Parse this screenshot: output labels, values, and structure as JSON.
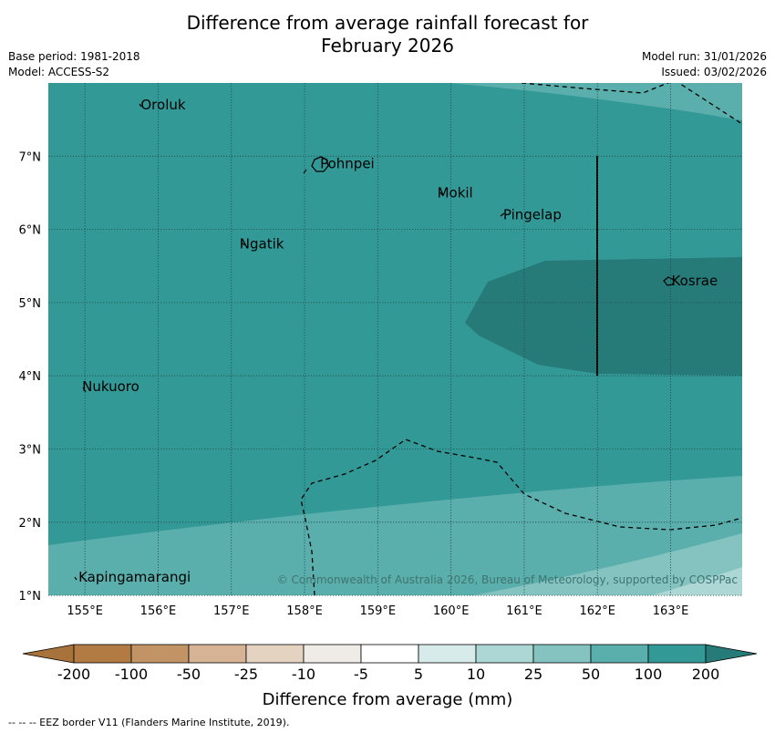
{
  "title": {
    "line1": "Difference from average rainfall forecast for",
    "line2": "February 2026"
  },
  "meta": {
    "base_period": "Base period: 1981-2018",
    "model": "Model: ACCESS-S2",
    "model_run": "Model run: 31/01/2026",
    "issued": "Issued: 03/02/2026"
  },
  "map": {
    "lat_labels": [
      "7°N",
      "6°N",
      "5°N",
      "4°N",
      "3°N",
      "2°N",
      "1°N"
    ],
    "lon_labels": [
      "155°E",
      "156°E",
      "157°E",
      "158°E",
      "159°E",
      "160°E",
      "161°E",
      "162°E",
      "163°E"
    ],
    "places": [
      {
        "name": "Oroluk",
        "lon": 155.75,
        "lat": 7.7
      },
      {
        "name": "Pohnpei",
        "lon": 158.2,
        "lat": 6.9
      },
      {
        "name": "Mokil",
        "lon": 159.8,
        "lat": 6.5
      },
      {
        "name": "Pingelap",
        "lon": 160.7,
        "lat": 6.2
      },
      {
        "name": "Ngatik",
        "lon": 157.1,
        "lat": 5.8
      },
      {
        "name": "Kosrae",
        "lon": 163.0,
        "lat": 5.3
      },
      {
        "name": "Nukuoro",
        "lon": 154.95,
        "lat": 3.85
      },
      {
        "name": "Kapingamarangi",
        "lon": 154.9,
        "lat": 1.25
      }
    ],
    "copyright": "© Commonwealth of Australia 2026, Bureau of Meteorology, supported by COSPPac"
  },
  "colorbar": {
    "labels": [
      "-200",
      "-100",
      "-50",
      "-25",
      "-10",
      "-5",
      "5",
      "10",
      "25",
      "50",
      "100",
      "200"
    ],
    "colors": [
      "#a8733a",
      "#b27b43",
      "#c29465",
      "#d6b394",
      "#e5d3c2",
      "#efebe7",
      "#ffffff",
      "#d7ebea",
      "#acd7d5",
      "#84c3c0",
      "#5aaeab",
      "#339996",
      "#267a78"
    ],
    "title": "Difference from average (mm)"
  },
  "footer": "--  --  -- EEZ border V11 (Flanders Marine Institute, 2019)."
}
